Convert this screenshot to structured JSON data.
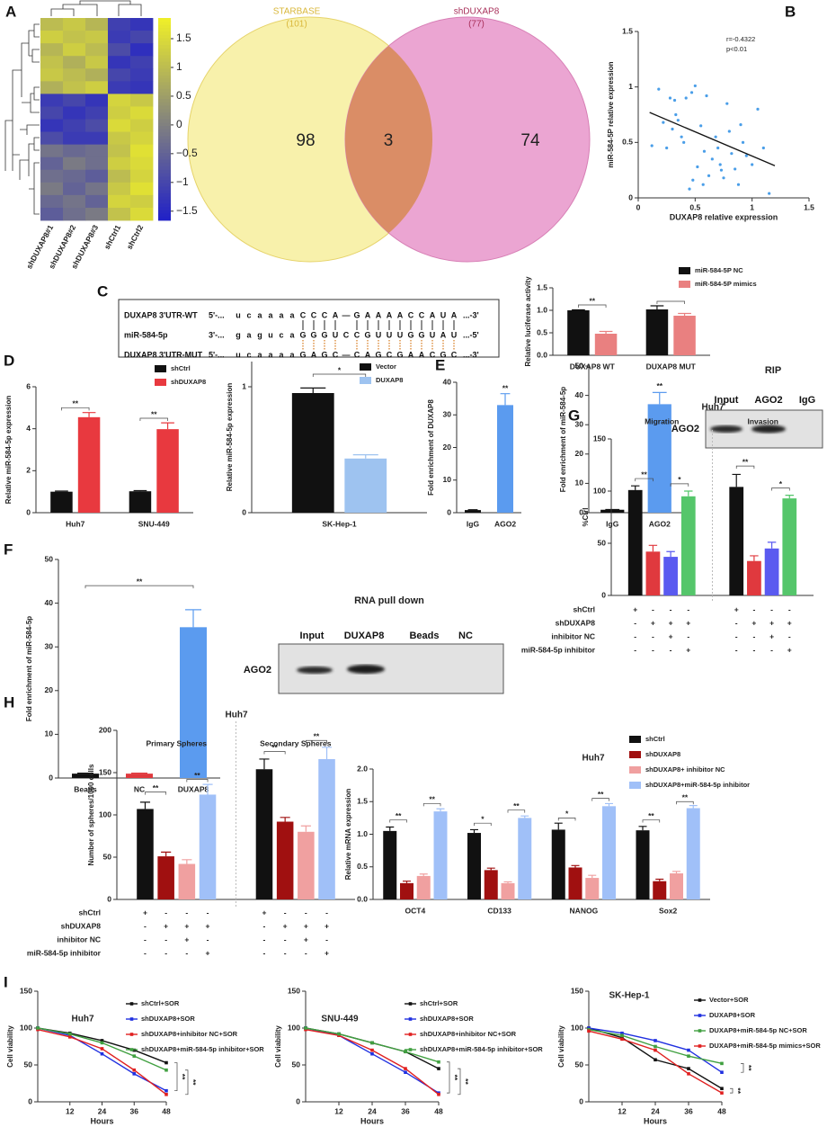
{
  "panel_labels": [
    "A",
    "B",
    "C",
    "D",
    "E",
    "F",
    "G",
    "H",
    "I"
  ],
  "venn": {
    "left": {
      "name": "STARBASE",
      "count": "(101)",
      "only": "98"
    },
    "right": {
      "name": "shDUXAP8",
      "count": "(77)",
      "only": "74"
    },
    "shared": "3"
  },
  "sequence": {
    "rows": [
      {
        "name": "DUXAP8 3'UTR-WT",
        "tokens": [
          "5'-...",
          "u",
          "c",
          "a",
          "a",
          "a",
          "a",
          "C",
          "C",
          "C",
          "A",
          "—",
          "G",
          "A",
          "A",
          "A",
          "A",
          "C",
          "C",
          "A",
          "U",
          "A",
          "...-3'"
        ]
      },
      {
        "name": "miR-584-5p",
        "tokens": [
          "3'-...",
          "g",
          "a",
          "g",
          "u",
          "c",
          "a",
          "G",
          "G",
          "G",
          "U",
          "C",
          "C",
          "G",
          "U",
          "U",
          "U",
          "G",
          "G",
          "U",
          "A",
          "U",
          "...-5'"
        ]
      },
      {
        "name": "DUXAP8 3'UTR-MUT",
        "tokens": [
          "5'-...",
          "u",
          "c",
          "a",
          "a",
          "a",
          "a",
          "G",
          "A",
          "G",
          "C",
          "—",
          "C",
          "A",
          "G",
          "C",
          "G",
          "A",
          "A",
          "C",
          "G",
          "C",
          "...-3'"
        ]
      }
    ]
  },
  "blots": [
    {
      "title": "RIP",
      "lanes": [
        "Input",
        "AGO2",
        "IgG"
      ],
      "row": "AGO2"
    },
    {
      "title": "RNA pull down",
      "lanes": [
        "Input",
        "DUXAP8",
        "Beads",
        "NC"
      ],
      "row": "AGO2"
    }
  ],
  "chart_data": [
    {
      "type": "heatmap",
      "columns": [
        "shDUXAP8#1",
        "shDUXAP8#2",
        "shDUXAP8#3",
        "shCtrl1",
        "shCtrl2"
      ],
      "values": [
        [
          1.0,
          1.2,
          0.9,
          -1.1,
          -1.3
        ],
        [
          1.3,
          1.1,
          1.2,
          -1.2,
          -1.0
        ],
        [
          0.9,
          1.3,
          1.0,
          -0.9,
          -1.4
        ],
        [
          1.1,
          0.8,
          1.2,
          -1.3,
          -1.1
        ],
        [
          1.2,
          1.0,
          0.8,
          -1.0,
          -1.2
        ],
        [
          0.8,
          1.1,
          1.3,
          -1.2,
          -1.3
        ],
        [
          -1.2,
          -1.0,
          -1.3,
          1.4,
          1.2
        ],
        [
          -1.0,
          -1.3,
          -1.1,
          1.3,
          1.5
        ],
        [
          -1.3,
          -1.1,
          -0.9,
          1.5,
          1.3
        ],
        [
          -0.9,
          -1.2,
          -1.2,
          1.2,
          1.4
        ],
        [
          -0.2,
          -0.4,
          -0.3,
          1.1,
          1.6
        ],
        [
          -0.5,
          -0.1,
          -0.3,
          1.3,
          1.5
        ],
        [
          -0.3,
          -0.4,
          -0.6,
          1.0,
          1.4
        ],
        [
          -0.1,
          -0.5,
          -0.2,
          1.2,
          1.6
        ],
        [
          -0.4,
          -0.2,
          -0.5,
          1.4,
          1.3
        ],
        [
          -0.6,
          -0.3,
          -0.1,
          1.1,
          1.5
        ]
      ],
      "clim": [
        -1.66,
        1.86
      ],
      "cticks": [
        1.5,
        1,
        0.5,
        0,
        {
          "value": -0.5,
          "label": "−0.5"
        },
        {
          "value": -1,
          "label": "−1"
        },
        {
          "value": -1.5,
          "label": "−1.5"
        }
      ]
    },
    {
      "type": "scatter",
      "xlabel": "DUXAP8 relative expression",
      "ylabel": "miR-584-5P relative expression",
      "color": "#4a9ee8",
      "x": [
        0.12,
        0.18,
        0.22,
        0.25,
        0.28,
        0.3,
        0.32,
        0.35,
        0.38,
        0.4,
        0.42,
        0.45,
        0.48,
        0.5,
        0.52,
        0.55,
        0.58,
        0.6,
        0.62,
        0.65,
        0.68,
        0.7,
        0.72,
        0.75,
        0.78,
        0.8,
        0.82,
        0.85,
        0.88,
        0.9,
        0.92,
        0.95,
        1.0,
        1.05,
        1.1,
        1.15,
        0.33,
        0.57,
        0.73,
        0.47
      ],
      "y": [
        0.47,
        0.98,
        0.68,
        0.45,
        0.9,
        0.62,
        0.88,
        0.7,
        0.55,
        0.5,
        0.9,
        0.08,
        0.16,
        1.01,
        0.28,
        0.65,
        0.42,
        0.92,
        0.2,
        0.35,
        0.55,
        0.45,
        0.3,
        0.18,
        0.85,
        0.6,
        0.4,
        0.26,
        0.12,
        0.66,
        0.5,
        0.38,
        0.3,
        0.8,
        0.45,
        0.04,
        0.75,
        0.12,
        0.25,
        0.95
      ],
      "fit_line": {
        "x": [
          0.1,
          1.2
        ],
        "y": [
          0.77,
          0.29
        ]
      },
      "annotations": [
        "r=-0.4322",
        "p<0.01"
      ],
      "xlim": [
        0,
        1.5
      ],
      "xticks": [
        0,
        0.5,
        1,
        1.5
      ],
      "ylim": [
        0,
        1.5
      ],
      "yticks": [
        0,
        0.5,
        1,
        1.5
      ]
    },
    {
      "type": "bar",
      "categories": [
        "DUXAP8 WT",
        "DUXAP8 MUT"
      ],
      "ylabel": "Relative luciferase activity",
      "series": [
        {
          "name": "miR-584-5P NC",
          "color": "#111111",
          "values": [
            1.0,
            1.02
          ],
          "errors": [
            0.01,
            0.08
          ]
        },
        {
          "name": "miR-584-5P mimics",
          "color": "#e98080",
          "values": [
            0.48,
            0.88
          ],
          "errors": [
            0.05,
            0.05
          ]
        }
      ],
      "ylim": [
        0,
        1.5
      ],
      "yticks": [
        {
          "value": 0,
          "label": "0.0"
        },
        0.5,
        {
          "value": 1,
          "label": "1.0"
        },
        1.5
      ],
      "annotations": [
        "**"
      ]
    },
    {
      "type": "bar",
      "categories": [
        "Huh7",
        "SNU-449"
      ],
      "ylabel": "Relative miR-584-5p expression",
      "series": [
        {
          "name": "shCtrl",
          "color": "#111111",
          "values": [
            1.0,
            1.02
          ],
          "errors": [
            0.03,
            0.03
          ]
        },
        {
          "name": "shDUXAP8",
          "color": "#e8393f",
          "values": [
            4.55,
            3.98
          ],
          "errors": [
            0.22,
            0.3
          ]
        }
      ],
      "ylim": [
        0,
        6
      ],
      "yticks": [
        0,
        2,
        4,
        6
      ],
      "annotations": [
        "**",
        "**"
      ]
    },
    {
      "type": "bar",
      "categories": [
        "SK-Hep-1"
      ],
      "ylabel": "Relative miR-584-5p expression",
      "series": [
        {
          "name": "Vector",
          "color": "#111111",
          "values": [
            0.95
          ],
          "errors": [
            0.04
          ]
        },
        {
          "name": "DUXAP8",
          "color": "#9ec3f0",
          "values": [
            0.43
          ],
          "errors": [
            0.03
          ]
        }
      ],
      "ylim": [
        0,
        1.2
      ],
      "yticks": [
        0,
        1
      ],
      "annotations": [
        "*"
      ]
    },
    {
      "type": "bar",
      "categories": [
        "IgG",
        "AGO2"
      ],
      "ylabel": "Fold enrichment of DUXAP8",
      "values": [
        0.8,
        33
      ],
      "errors": [
        0.1,
        3.5
      ],
      "colors": [
        "#111111",
        "#5b9bef"
      ],
      "ylim": [
        0,
        40
      ],
      "yticks": [
        0,
        10,
        20,
        30,
        40
      ],
      "annotations": [
        "**"
      ]
    },
    {
      "type": "bar",
      "categories": [
        "IgG",
        "AGO2"
      ],
      "ylabel": "Fold enrichment of miR-584-5p",
      "values": [
        1,
        37
      ],
      "errors": [
        0.1,
        4
      ],
      "colors": [
        "#111111",
        "#5b9bef"
      ],
      "ylim": [
        0,
        50
      ],
      "yticks": [
        0,
        10,
        20,
        30,
        40,
        50
      ],
      "annotations": [
        "**"
      ]
    },
    {
      "type": "bar",
      "categories": [
        "Beads",
        "NC",
        "DUXAP8"
      ],
      "ylabel": "Fold enrichment of miR-584-5p",
      "values": [
        1,
        1,
        34.5
      ],
      "errors": [
        0.1,
        0.1,
        4
      ],
      "colors": [
        "#111111",
        "#e0393e",
        "#5b9bef"
      ],
      "ylim": [
        0,
        50
      ],
      "yticks": [
        0,
        10,
        20,
        30,
        40,
        50
      ],
      "annotations": [
        "**"
      ]
    },
    {
      "type": "bar",
      "title": "Huh7",
      "categories": [
        "Migration",
        "Invasion"
      ],
      "ylabel": "%Ctrl",
      "series": [
        {
          "color": "#111111",
          "values": [
            101,
            104
          ],
          "errors": [
            4,
            12
          ]
        },
        {
          "color": "#e0393e",
          "values": [
            42,
            33
          ],
          "errors": [
            6,
            5
          ]
        },
        {
          "color": "#5a5af0",
          "values": [
            37,
            45
          ],
          "errors": [
            5,
            6
          ]
        },
        {
          "color": "#55c66b",
          "values": [
            95,
            93
          ],
          "errors": [
            5,
            3
          ]
        }
      ],
      "ylim": [
        0,
        150
      ],
      "yticks": [
        0,
        50,
        100,
        150
      ],
      "annotations": [
        "**",
        "*",
        "**",
        "*"
      ],
      "table": [
        {
          "name": "shCtrl",
          "cells": [
            "+",
            "-",
            "-",
            "-",
            "+",
            "-",
            "-",
            "-"
          ]
        },
        {
          "name": "shDUXAP8",
          "cells": [
            "-",
            "+",
            "+",
            "+",
            "-",
            "+",
            "+",
            "+"
          ]
        },
        {
          "name": "inhibitor NC",
          "cells": [
            "-",
            "-",
            "+",
            "-",
            "-",
            "-",
            "+",
            "-"
          ]
        },
        {
          "name": "miR-584-5p inhibitor",
          "cells": [
            "-",
            "-",
            "-",
            "+",
            "-",
            "-",
            "-",
            "+"
          ]
        }
      ]
    },
    {
      "type": "bar",
      "title": "Huh7",
      "categories": [
        "Primary Spheres",
        "Secondary Spheres"
      ],
      "ylabel": "Number of spheres/1000 cells",
      "series": [
        {
          "color": "#111111",
          "values": [
            107,
            154
          ],
          "errors": [
            8,
            12
          ]
        },
        {
          "color": "#a01010",
          "values": [
            51,
            92
          ],
          "errors": [
            5,
            5
          ]
        },
        {
          "color": "#f0a0a0",
          "values": [
            42,
            80
          ],
          "errors": [
            5,
            7
          ]
        },
        {
          "color": "#a0c0f8",
          "values": [
            124,
            166
          ],
          "errors": [
            12,
            14
          ]
        }
      ],
      "ylim": [
        0,
        200
      ],
      "yticks": [
        0,
        50,
        100,
        150,
        200
      ],
      "annotations": [
        "**",
        "**",
        "**",
        "**"
      ],
      "table": [
        {
          "name": "shCtrl",
          "cells": [
            "+",
            "-",
            "-",
            "-",
            "+",
            "-",
            "-",
            "-"
          ]
        },
        {
          "name": "shDUXAP8",
          "cells": [
            "-",
            "+",
            "+",
            "+",
            "-",
            "+",
            "+",
            "+"
          ]
        },
        {
          "name": "inhibitor NC",
          "cells": [
            "-",
            "-",
            "+",
            "-",
            "-",
            "-",
            "+",
            "-"
          ]
        },
        {
          "name": "miR-584-5p inhibitor",
          "cells": [
            "-",
            "-",
            "-",
            "+",
            "-",
            "-",
            "-",
            "+"
          ]
        }
      ]
    },
    {
      "type": "bar",
      "title": "Huh7",
      "categories": [
        "OCT4",
        "CD133",
        "NANOG",
        "Sox2"
      ],
      "ylabel": "Relative mRNA expression",
      "series": [
        {
          "name": "shCtrl",
          "color": "#111111",
          "values": [
            1.05,
            1.02,
            1.07,
            1.06
          ],
          "errors": [
            0.06,
            0.05,
            0.1,
            0.06
          ]
        },
        {
          "name": "shDUXAP8",
          "color": "#a01010",
          "values": [
            0.25,
            0.45,
            0.49,
            0.28
          ],
          "errors": [
            0.03,
            0.03,
            0.03,
            0.03
          ]
        },
        {
          "name": "shDUXAP8+ inhibitor NC",
          "color": "#f0a0a0",
          "values": [
            0.36,
            0.25,
            0.33,
            0.4
          ],
          "errors": [
            0.03,
            0.02,
            0.04,
            0.03
          ]
        },
        {
          "name": "shDUXAP8+miR-584-5p inhibitor",
          "color": "#a0c0f8",
          "values": [
            1.35,
            1.25,
            1.43,
            1.4
          ],
          "errors": [
            0.04,
            0.03,
            0.04,
            0.04
          ]
        }
      ],
      "ylim": [
        0,
        2
      ],
      "yticks": [
        {
          "value": 0,
          "label": "0.0"
        },
        0.5,
        {
          "value": 1,
          "label": "1.0"
        },
        1.5,
        {
          "value": 2,
          "label": "2.0"
        }
      ],
      "annotations": [
        "**",
        "**",
        "*",
        "**",
        "*",
        "**",
        "**",
        "**"
      ]
    },
    {
      "type": "line",
      "title": "Huh7",
      "xlabel": "Hours",
      "ylabel": "Cell viability",
      "x": [
        0,
        12,
        24,
        36,
        48
      ],
      "xlim": [
        0,
        48
      ],
      "xticks": [
        12,
        24,
        36,
        48
      ],
      "ylim": [
        0,
        150
      ],
      "yticks": [
        0,
        50,
        100,
        150
      ],
      "series": [
        {
          "name": "shCtrl+SOR",
          "color": "#111111",
          "values": [
            100,
            93,
            83,
            70,
            53
          ]
        },
        {
          "name": "shDUXAP8+SOR",
          "color": "#2030e0",
          "values": [
            100,
            90,
            65,
            38,
            15
          ]
        },
        {
          "name": "shDUXAP8+inhibitor  NC+SOR",
          "color": "#e02020",
          "values": [
            98,
            88,
            72,
            43,
            10
          ]
        },
        {
          "name": "shDUXAP8+miR-584-5p  inhibitor+SOR",
          "color": "#40a040",
          "values": [
            100,
            92,
            80,
            62,
            43
          ]
        }
      ],
      "annotations": [
        "**",
        "**"
      ]
    },
    {
      "type": "line",
      "title": "SNU-449",
      "xlabel": "Hours",
      "ylabel": "Cell viability",
      "x": [
        0,
        12,
        24,
        36,
        48
      ],
      "xlim": [
        0,
        48
      ],
      "xticks": [
        12,
        24,
        36,
        48
      ],
      "ylim": [
        0,
        150
      ],
      "yticks": [
        0,
        50,
        100,
        150
      ],
      "series": [
        {
          "name": "shCtrl+SOR",
          "color": "#111111",
          "values": [
            100,
            92,
            80,
            68,
            45
          ]
        },
        {
          "name": "shDUXAP8+SOR",
          "color": "#2030e0",
          "values": [
            100,
            90,
            65,
            40,
            12
          ]
        },
        {
          "name": "shDUXAP8+inhibitor  NC+SOR",
          "color": "#e02020",
          "values": [
            98,
            90,
            70,
            45,
            10
          ]
        },
        {
          "name": "shDUXAP8+miR-584-5p  inhibitor+SOR",
          "color": "#40a040",
          "values": [
            100,
            92,
            80,
            68,
            54
          ]
        }
      ],
      "annotations": [
        "**",
        "**"
      ]
    },
    {
      "type": "line",
      "title": "SK-Hep-1",
      "xlabel": "Hours",
      "ylabel": "Cell viability",
      "x": [
        0,
        12,
        24,
        36,
        48
      ],
      "xlim": [
        0,
        48
      ],
      "xticks": [
        12,
        24,
        36,
        48
      ],
      "ylim": [
        0,
        150
      ],
      "yticks": [
        0,
        50,
        100,
        150
      ],
      "series": [
        {
          "name": "Vector+SOR",
          "color": "#111111",
          "values": [
            100,
            87,
            57,
            45,
            18
          ]
        },
        {
          "name": "DUXAP8+SOR",
          "color": "#2030e0",
          "values": [
            100,
            93,
            83,
            70,
            40
          ]
        },
        {
          "name": "DUXAP8+miR-584-5p  NC+SOR",
          "color": "#40a040",
          "values": [
            98,
            90,
            75,
            62,
            52
          ]
        },
        {
          "name": "DUXAP8+miR-584-5p  mimics+SOR",
          "color": "#e02020",
          "values": [
            96,
            85,
            70,
            38,
            12
          ]
        }
      ],
      "annotations": [
        "**",
        "**"
      ]
    }
  ]
}
